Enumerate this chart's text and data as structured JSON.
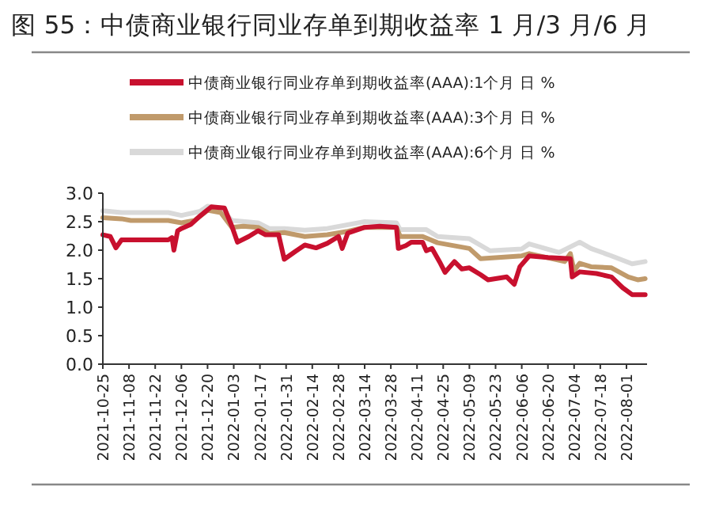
{
  "chart_data": {
    "type": "line",
    "title": "图 55：中债商业银行同业存单到期收益率 1 月/3 月/6 月",
    "legend": "top",
    "grid": false,
    "marker": "none",
    "line_style": "solid",
    "xlim": [
      "2021-10-25",
      "2022-08-12"
    ],
    "xticks": [
      "2021-10-25",
      "2021-11-08",
      "2021-11-22",
      "2021-12-06",
      "2021-12-20",
      "2022-01-03",
      "2022-01-17",
      "2022-01-31",
      "2022-02-14",
      "2022-02-28",
      "2022-03-14",
      "2022-03-28",
      "2022-04-11",
      "2022-04-25",
      "2022-05-09",
      "2022-05-23",
      "2022-06-06",
      "2022-06-20",
      "2022-07-04",
      "2022-07-18",
      "2022-08-01"
    ],
    "ylim": [
      0,
      3
    ],
    "yticks": [
      {
        "value": 0,
        "label": "0.0"
      },
      {
        "value": 0.5,
        "label": "0.5"
      },
      {
        "value": 1,
        "label": "1.0"
      },
      {
        "value": 1.5,
        "label": "1.5"
      },
      {
        "value": 2,
        "label": "2.0"
      },
      {
        "value": 2.5,
        "label": "2.5"
      },
      {
        "value": 3,
        "label": "3.0"
      }
    ],
    "series": [
      {
        "name": "中债商业银行同业存单到期收益率(AAA):1个月 日 %",
        "color": "#c8102e",
        "x": [
          "2021-10-25",
          "2021-10-29",
          "2021-11-01",
          "2021-11-04",
          "2021-11-29",
          "2021-12-01",
          "2021-12-02",
          "2021-12-04",
          "2021-12-06",
          "2021-12-11",
          "2021-12-16",
          "2021-12-22",
          "2021-12-29",
          "2022-01-02",
          "2022-01-05",
          "2022-01-11",
          "2022-01-16",
          "2022-01-20",
          "2022-01-27",
          "2022-01-30",
          "2022-02-05",
          "2022-02-10",
          "2022-02-16",
          "2022-02-22",
          "2022-02-28",
          "2022-03-02",
          "2022-03-05",
          "2022-03-14",
          "2022-03-22",
          "2022-03-31",
          "2022-04-01",
          "2022-04-05",
          "2022-04-08",
          "2022-04-14",
          "2022-04-16",
          "2022-04-19",
          "2022-04-23",
          "2022-04-26",
          "2022-05-01",
          "2022-05-05",
          "2022-05-09",
          "2022-05-15",
          "2022-05-19",
          "2022-05-29",
          "2022-06-02",
          "2022-06-05",
          "2022-06-10",
          "2022-06-20",
          "2022-07-02",
          "2022-07-03",
          "2022-07-07",
          "2022-07-16",
          "2022-07-24",
          "2022-07-30",
          "2022-08-04",
          "2022-08-11"
        ],
        "values": [
          2.27,
          2.24,
          2.04,
          2.18,
          2.18,
          2.22,
          2.0,
          2.34,
          2.38,
          2.45,
          2.6,
          2.76,
          2.74,
          2.42,
          2.14,
          2.24,
          2.34,
          2.27,
          2.27,
          1.84,
          1.98,
          2.09,
          2.04,
          2.12,
          2.24,
          2.03,
          2.3,
          2.4,
          2.42,
          2.4,
          2.03,
          2.08,
          2.14,
          2.14,
          1.99,
          2.03,
          1.8,
          1.61,
          1.8,
          1.67,
          1.69,
          1.57,
          1.48,
          1.53,
          1.4,
          1.71,
          1.9,
          1.87,
          1.85,
          1.53,
          1.62,
          1.59,
          1.53,
          1.34,
          1.22,
          1.22
        ]
      },
      {
        "name": "中债商业银行同业存单到期收益率(AAA):3个月 日 %",
        "color": "#c09a6b",
        "x": [
          "2021-10-25",
          "2021-11-04",
          "2021-11-09",
          "2021-11-29",
          "2021-12-06",
          "2021-12-13",
          "2021-12-20",
          "2021-12-27",
          "2022-01-02",
          "2022-01-08",
          "2022-01-16",
          "2022-01-22",
          "2022-01-30",
          "2022-02-10",
          "2022-02-22",
          "2022-03-05",
          "2022-03-14",
          "2022-03-31",
          "2022-04-02",
          "2022-04-14",
          "2022-04-22",
          "2022-05-09",
          "2022-05-15",
          "2022-06-06",
          "2022-06-10",
          "2022-06-29",
          "2022-07-02",
          "2022-07-04",
          "2022-07-07",
          "2022-07-13",
          "2022-07-24",
          "2022-08-02",
          "2022-08-07",
          "2022-08-11"
        ],
        "values": [
          2.57,
          2.55,
          2.52,
          2.52,
          2.48,
          2.52,
          2.7,
          2.66,
          2.4,
          2.42,
          2.4,
          2.29,
          2.31,
          2.24,
          2.27,
          2.33,
          2.4,
          2.4,
          2.24,
          2.24,
          2.13,
          2.03,
          1.85,
          1.9,
          1.94,
          1.8,
          1.94,
          1.64,
          1.77,
          1.71,
          1.69,
          1.53,
          1.48,
          1.5
        ]
      },
      {
        "name": "中债商业银行同业存单到期收益率(AAA):6个月 日 %",
        "color": "#d9d9d9",
        "x": [
          "2021-10-25",
          "2021-11-04",
          "2021-11-29",
          "2021-12-06",
          "2021-12-16",
          "2021-12-20",
          "2021-12-27",
          "2022-01-02",
          "2022-01-16",
          "2022-01-22",
          "2022-01-30",
          "2022-02-10",
          "2022-02-22",
          "2022-03-14",
          "2022-03-31",
          "2022-04-02",
          "2022-04-16",
          "2022-04-22",
          "2022-05-09",
          "2022-05-20",
          "2022-06-06",
          "2022-06-10",
          "2022-06-26",
          "2022-07-07",
          "2022-07-13",
          "2022-07-24",
          "2022-08-04",
          "2022-08-11"
        ],
        "values": [
          2.69,
          2.66,
          2.66,
          2.61,
          2.68,
          2.77,
          2.73,
          2.52,
          2.48,
          2.38,
          2.38,
          2.35,
          2.38,
          2.5,
          2.48,
          2.36,
          2.36,
          2.24,
          2.2,
          1.99,
          2.02,
          2.11,
          1.96,
          2.14,
          2.03,
          1.9,
          1.76,
          1.8
        ]
      }
    ]
  }
}
